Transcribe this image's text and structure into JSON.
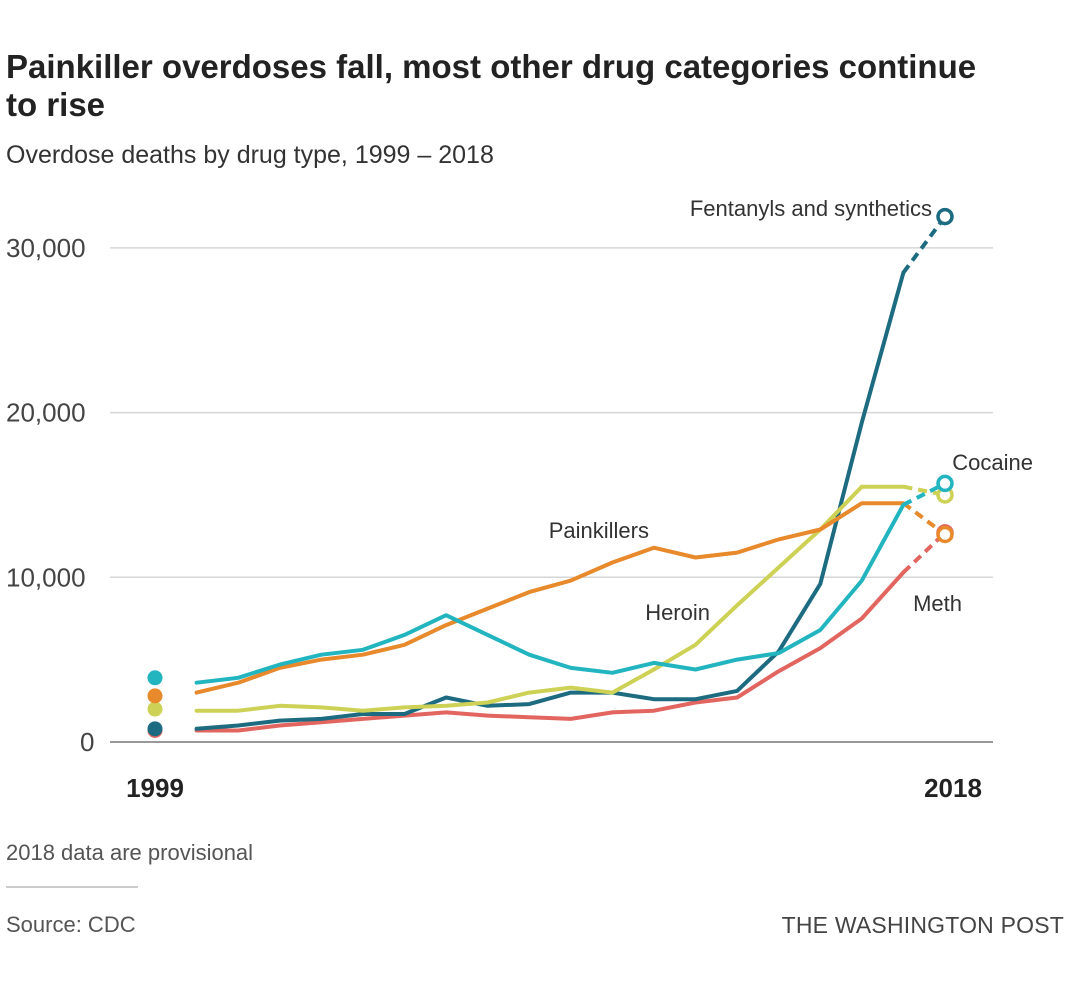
{
  "header": {
    "title": "Painkiller overdoses fall, most other drug categories continue to rise",
    "subtitle": "Overdose deaths by drug type, 1999 – 2018"
  },
  "footer": {
    "note": "2018 data are provisional",
    "source": "Source: CDC",
    "brand": "THE WASHINGTON POST"
  },
  "chart_data": {
    "type": "line",
    "title": "Painkiller overdoses fall, most other drug categories continue to rise",
    "subtitle": "Overdose deaths by drug type, 1999 – 2018",
    "xlabel": "",
    "ylabel": "",
    "x": [
      1999,
      2000,
      2001,
      2002,
      2003,
      2004,
      2005,
      2006,
      2007,
      2008,
      2009,
      2010,
      2011,
      2012,
      2013,
      2014,
      2015,
      2016,
      2017,
      2018
    ],
    "x_tick_labels": [
      "1999",
      "2018"
    ],
    "y_ticks": [
      0,
      10000,
      20000,
      30000
    ],
    "y_tick_labels": [
      "0",
      "10,000",
      "20,000",
      "30,000"
    ],
    "ylim": [
      0,
      32000
    ],
    "grid": true,
    "provisional_last_point": true,
    "series": [
      {
        "name": "Cocaine",
        "label": "Cocaine",
        "color": "#22b5bf",
        "values": [
          3900,
          3600,
          3900,
          4700,
          5300,
          5600,
          6500,
          7700,
          6500,
          5300,
          4500,
          4200,
          4800,
          4400,
          5000,
          5400,
          6800,
          9800,
          14400,
          15700
        ]
      },
      {
        "name": "Painkillers",
        "label": "Painkillers",
        "color": "#e8892b",
        "values": [
          2800,
          3000,
          3600,
          4500,
          5000,
          5300,
          5900,
          7100,
          8100,
          9100,
          9800,
          10900,
          11800,
          11200,
          11500,
          12300,
          12900,
          14500,
          14500,
          12600
        ]
      },
      {
        "name": "Heroin",
        "label": "Heroin",
        "color": "#cdd155",
        "values": [
          2000,
          1900,
          1900,
          2200,
          2100,
          1900,
          2100,
          2200,
          2400,
          3000,
          3300,
          3000,
          4400,
          5900,
          8300,
          10600,
          12900,
          15500,
          15500,
          15000
        ]
      },
      {
        "name": "Meth",
        "label": "Meth",
        "color": "#e2655f",
        "values": [
          700,
          700,
          700,
          1000,
          1200,
          1400,
          1600,
          1800,
          1600,
          1500,
          1400,
          1800,
          1900,
          2400,
          2700,
          4300,
          5700,
          7500,
          10300,
          12700
        ]
      },
      {
        "name": "Fentanyls and synthetics",
        "label": "Fentanyls and synthetics",
        "color": "#1d6b80",
        "values": [
          800,
          800,
          1000,
          1300,
          1400,
          1700,
          1700,
          2700,
          2200,
          2300,
          3000,
          3000,
          2600,
          2600,
          3100,
          5500,
          9600,
          19400,
          28500,
          31900
        ]
      }
    ]
  }
}
